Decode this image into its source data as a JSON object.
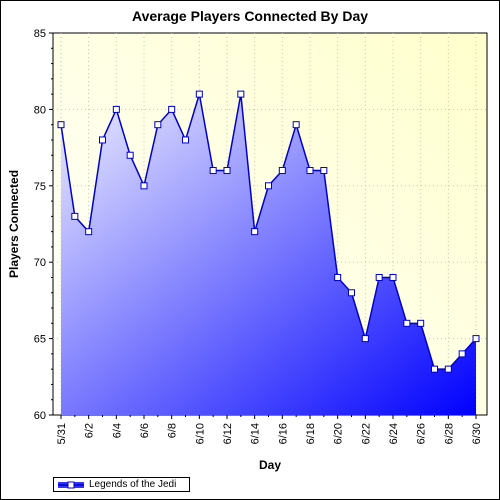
{
  "chart_data": {
    "type": "area",
    "title": "Average Players Connected By Day",
    "xlabel": "Day",
    "ylabel": "Players Connected",
    "ylim": [
      60,
      85
    ],
    "yticks": [
      60,
      65,
      70,
      75,
      80,
      85
    ],
    "x": [
      "5/31",
      "6/1",
      "6/2",
      "6/3",
      "6/4",
      "6/5",
      "6/6",
      "6/7",
      "6/8",
      "6/9",
      "6/10",
      "6/11",
      "6/12",
      "6/13",
      "6/14",
      "6/15",
      "6/16",
      "6/17",
      "6/18",
      "6/19",
      "6/20",
      "6/21",
      "6/22",
      "6/23",
      "6/24",
      "6/25",
      "6/26",
      "6/27",
      "6/28",
      "6/29",
      "6/30"
    ],
    "xtick_labels": [
      "5/31",
      "6/2",
      "6/4",
      "6/6",
      "6/8",
      "6/10",
      "6/12",
      "6/14",
      "6/16",
      "6/18",
      "6/20",
      "6/22",
      "6/24",
      "6/26",
      "6/28",
      "6/30"
    ],
    "series": [
      {
        "name": "Legends of the Jedi",
        "values": [
          79,
          73,
          72,
          78,
          80,
          77,
          75,
          79,
          80,
          78,
          81,
          76,
          76,
          81,
          72,
          75,
          76,
          79,
          76,
          76,
          69,
          68,
          65,
          69,
          69,
          66,
          66,
          63,
          63,
          64,
          65
        ]
      }
    ],
    "grid": true,
    "legend": "bottom-left",
    "colors": {
      "line": "#0000cc",
      "fill_light": "#e8e8ff",
      "fill_dark": "#0000ff",
      "background_light": "#ffffff",
      "background_warm": "#ffffcc",
      "marker_fill": "#ffffff"
    }
  }
}
